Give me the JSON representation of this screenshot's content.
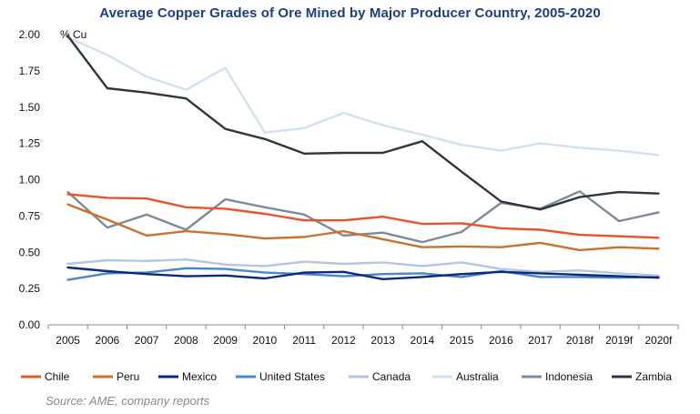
{
  "chart_data": {
    "type": "line",
    "title": "Average Copper Grades of Ore Mined by Major Producer Country, 2005-2020",
    "ylabel": "% Cu",
    "xlabel": "",
    "ylim": [
      0,
      2
    ],
    "ytick_labels": [
      "0.00",
      "0.25",
      "0.50",
      "0.75",
      "1.00",
      "1.25",
      "1.50",
      "1.75",
      "2.00"
    ],
    "categories": [
      "2005",
      "2006",
      "2007",
      "2008",
      "2009",
      "2010",
      "2011",
      "2012",
      "2013",
      "2014",
      "2015",
      "2016",
      "2017",
      "2018f",
      "2019f",
      "2020f"
    ],
    "grid": false,
    "legend_position": "bottom",
    "series": [
      {
        "name": "Chile",
        "color": "#e8542a",
        "values": [
          0.9,
          0.875,
          0.87,
          0.81,
          0.8,
          0.765,
          0.72,
          0.72,
          0.745,
          0.695,
          0.7,
          0.665,
          0.655,
          0.62,
          0.61,
          0.6
        ]
      },
      {
        "name": "Peru",
        "color": "#c9722d",
        "values": [
          0.83,
          0.725,
          0.615,
          0.645,
          0.625,
          0.595,
          0.605,
          0.645,
          0.59,
          0.535,
          0.54,
          0.535,
          0.565,
          0.515,
          0.535,
          0.525
        ]
      },
      {
        "name": "Mexico",
        "color": "#0d2a7a",
        "values": [
          0.395,
          0.37,
          0.35,
          0.335,
          0.34,
          0.32,
          0.36,
          0.365,
          0.315,
          0.33,
          0.35,
          0.365,
          0.355,
          0.345,
          0.335,
          0.325
        ]
      },
      {
        "name": "United States",
        "color": "#4a86c8",
        "values": [
          0.31,
          0.355,
          0.36,
          0.39,
          0.385,
          0.36,
          0.35,
          0.335,
          0.35,
          0.355,
          0.33,
          0.37,
          0.33,
          0.33,
          0.325,
          0.33
        ]
      },
      {
        "name": "Canada",
        "color": "#b5c6e0",
        "values": [
          0.42,
          0.445,
          0.44,
          0.45,
          0.415,
          0.405,
          0.435,
          0.42,
          0.43,
          0.405,
          0.43,
          0.385,
          0.365,
          0.375,
          0.355,
          0.34
        ]
      },
      {
        "name": "Australia",
        "color": "#d3e0f3",
        "values": [
          1.98,
          1.86,
          1.71,
          1.62,
          1.77,
          1.325,
          1.355,
          1.46,
          1.375,
          1.31,
          1.24,
          1.2,
          1.25,
          1.22,
          1.2,
          1.17
        ]
      },
      {
        "name": "Indonesia",
        "color": "#7f8a99",
        "values": [
          0.915,
          0.67,
          0.76,
          0.655,
          0.865,
          0.81,
          0.76,
          0.615,
          0.635,
          0.57,
          0.64,
          0.84,
          0.8,
          0.92,
          0.715,
          0.775
        ]
      },
      {
        "name": "Zambia",
        "color": "#2f3640",
        "values": [
          1.99,
          1.63,
          1.6,
          1.56,
          1.35,
          1.28,
          1.18,
          1.185,
          1.185,
          1.265,
          1.055,
          0.85,
          0.795,
          0.88,
          0.915,
          0.905
        ]
      }
    ]
  },
  "source_note": "Source: AME, company reports"
}
